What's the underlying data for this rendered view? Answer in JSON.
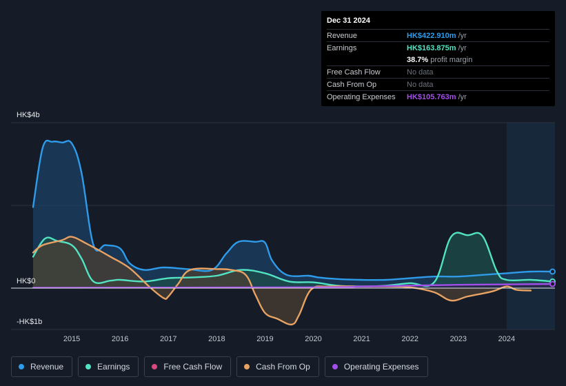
{
  "chart_data": {
    "type": "area",
    "x_domain": [
      2014.2,
      2025.0
    ],
    "ylim": [
      -0.5,
      2.0
    ],
    "y_axis_labels": [
      {
        "label": "HK$4b",
        "value": 2.0
      },
      {
        "label": "HK$0",
        "value": 0
      },
      {
        "label": "-HK$1b",
        "value": -0.5
      }
    ],
    "x_ticks": [
      "2015",
      "2016",
      "2017",
      "2018",
      "2019",
      "2020",
      "2021",
      "2022",
      "2023",
      "2024"
    ],
    "x_tick_values": [
      2015,
      2016,
      2017,
      2018,
      2019,
      2020,
      2021,
      2022,
      2023,
      2024
    ],
    "forecast_start": 2024.0,
    "series": [
      {
        "name": "Revenue",
        "color": "#2f9ceb",
        "fill": "#1b4166",
        "points": [
          [
            2014.2,
            0.98
          ],
          [
            2014.4,
            1.7
          ],
          [
            2014.6,
            1.77
          ],
          [
            2014.8,
            1.76
          ],
          [
            2015.0,
            1.75
          ],
          [
            2015.2,
            1.4
          ],
          [
            2015.45,
            0.52
          ],
          [
            2015.7,
            0.52
          ],
          [
            2016.0,
            0.48
          ],
          [
            2016.2,
            0.3
          ],
          [
            2016.5,
            0.22
          ],
          [
            2016.9,
            0.25
          ],
          [
            2017.4,
            0.23
          ],
          [
            2017.9,
            0.22
          ],
          [
            2018.2,
            0.42
          ],
          [
            2018.45,
            0.56
          ],
          [
            2018.8,
            0.56
          ],
          [
            2019.0,
            0.55
          ],
          [
            2019.15,
            0.33
          ],
          [
            2019.45,
            0.16
          ],
          [
            2019.9,
            0.15
          ],
          [
            2020.1,
            0.13
          ],
          [
            2020.5,
            0.11
          ],
          [
            2021.0,
            0.1
          ],
          [
            2021.5,
            0.1
          ],
          [
            2022.0,
            0.12
          ],
          [
            2022.5,
            0.14
          ],
          [
            2023.0,
            0.14
          ],
          [
            2023.5,
            0.16
          ],
          [
            2024.0,
            0.18
          ],
          [
            2024.5,
            0.2
          ],
          [
            2024.95,
            0.2
          ]
        ]
      },
      {
        "name": "Earnings",
        "color": "#52e3c2",
        "fill": "#1d4d4b",
        "points": [
          [
            2014.2,
            0.38
          ],
          [
            2014.45,
            0.6
          ],
          [
            2014.7,
            0.57
          ],
          [
            2015.0,
            0.52
          ],
          [
            2015.2,
            0.36
          ],
          [
            2015.45,
            0.08
          ],
          [
            2015.8,
            0.09
          ],
          [
            2016.0,
            0.1
          ],
          [
            2016.5,
            0.08
          ],
          [
            2017.0,
            0.12
          ],
          [
            2017.5,
            0.13
          ],
          [
            2018.0,
            0.15
          ],
          [
            2018.5,
            0.22
          ],
          [
            2019.0,
            0.18
          ],
          [
            2019.5,
            0.08
          ],
          [
            2020.0,
            0.07
          ],
          [
            2020.5,
            0.03
          ],
          [
            2021.0,
            0.02
          ],
          [
            2021.5,
            0.03
          ],
          [
            2022.0,
            0.06
          ],
          [
            2022.5,
            0.07
          ],
          [
            2022.85,
            0.62
          ],
          [
            2023.2,
            0.64
          ],
          [
            2023.5,
            0.63
          ],
          [
            2023.8,
            0.2
          ],
          [
            2024.0,
            0.1
          ],
          [
            2024.5,
            0.1
          ],
          [
            2024.95,
            0.08
          ]
        ]
      },
      {
        "name": "Free Cash Flow",
        "color": "#d9487f",
        "fill": "#5a1e2a",
        "points": []
      },
      {
        "name": "Cash From Op",
        "color": "#e8a263",
        "fill": "#4a3f33",
        "points": [
          [
            2014.2,
            0.43
          ],
          [
            2014.4,
            0.52
          ],
          [
            2014.8,
            0.58
          ],
          [
            2015.0,
            0.62
          ],
          [
            2015.3,
            0.54
          ],
          [
            2015.8,
            0.38
          ],
          [
            2016.2,
            0.24
          ],
          [
            2016.6,
            0.02
          ],
          [
            2016.9,
            -0.12
          ],
          [
            2017.0,
            -0.1
          ],
          [
            2017.2,
            0.05
          ],
          [
            2017.45,
            0.22
          ],
          [
            2018.0,
            0.23
          ],
          [
            2018.3,
            0.22
          ],
          [
            2018.6,
            0.16
          ],
          [
            2018.8,
            -0.08
          ],
          [
            2019.0,
            -0.3
          ],
          [
            2019.25,
            -0.37
          ],
          [
            2019.55,
            -0.44
          ],
          [
            2019.7,
            -0.33
          ],
          [
            2019.95,
            -0.02
          ],
          [
            2020.3,
            0.02
          ],
          [
            2021.0,
            0.02
          ],
          [
            2021.5,
            0.02
          ],
          [
            2022.0,
            0.01
          ],
          [
            2022.5,
            -0.05
          ],
          [
            2022.85,
            -0.15
          ],
          [
            2023.2,
            -0.1
          ],
          [
            2023.7,
            -0.04
          ],
          [
            2024.0,
            0.02
          ],
          [
            2024.2,
            -0.02
          ],
          [
            2024.5,
            -0.03
          ]
        ]
      },
      {
        "name": "Operating Expenses",
        "color": "#a24ee8",
        "fill": "#2a1f45",
        "points": [
          [
            2014.2,
            0.005
          ],
          [
            2020.0,
            0.01
          ],
          [
            2021.0,
            0.02
          ],
          [
            2022.0,
            0.03
          ],
          [
            2023.0,
            0.04
          ],
          [
            2024.0,
            0.045
          ],
          [
            2024.95,
            0.05
          ]
        ]
      }
    ]
  },
  "tooltip": {
    "date": "Dec 31 2024",
    "rows": [
      {
        "label": "Revenue",
        "value": "HK$422.910m",
        "unit": "/yr",
        "color": "#2f9ceb"
      },
      {
        "label": "Earnings",
        "value": "HK$163.875m",
        "unit": "/yr",
        "color": "#52e3c2"
      },
      {
        "label": "",
        "value": "38.7%",
        "unit": "profit margin",
        "color": "#ffffff"
      },
      {
        "label": "Free Cash Flow",
        "value": "No data",
        "unit": "",
        "color": "nodata"
      },
      {
        "label": "Cash From Op",
        "value": "No data",
        "unit": "",
        "color": "nodata"
      },
      {
        "label": "Operating Expenses",
        "value": "HK$105.763m",
        "unit": "/yr",
        "color": "#a24ee8"
      }
    ]
  },
  "legend": [
    {
      "label": "Revenue",
      "color": "#2f9ceb"
    },
    {
      "label": "Earnings",
      "color": "#52e3c2"
    },
    {
      "label": "Free Cash Flow",
      "color": "#d9487f"
    },
    {
      "label": "Cash From Op",
      "color": "#e8a263"
    },
    {
      "label": "Operating Expenses",
      "color": "#a24ee8"
    }
  ]
}
